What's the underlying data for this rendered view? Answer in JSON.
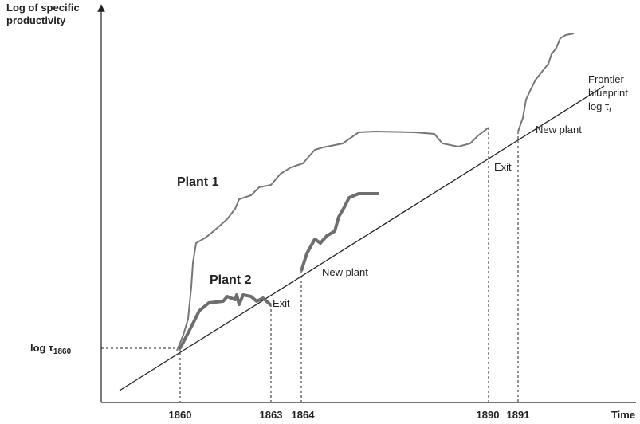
{
  "axes": {
    "y_label": [
      "Log of specific",
      "productivity"
    ],
    "x_label": "Time",
    "y_marker": {
      "text": "log τ",
      "sub": "1860"
    },
    "x_ticks": [
      "1860",
      "1863",
      "1864",
      "1890",
      "1891"
    ]
  },
  "annotations": {
    "plant1": "Plant 1",
    "plant2": "Plant 2",
    "exit1": "Exit",
    "new_plant1": "New plant",
    "exit2": "Exit",
    "new_plant2": "New plant",
    "frontier": {
      "lines": [
        "Frontier",
        "blueprint"
      ],
      "log": "log τ",
      "sub": "t"
    }
  }
}
